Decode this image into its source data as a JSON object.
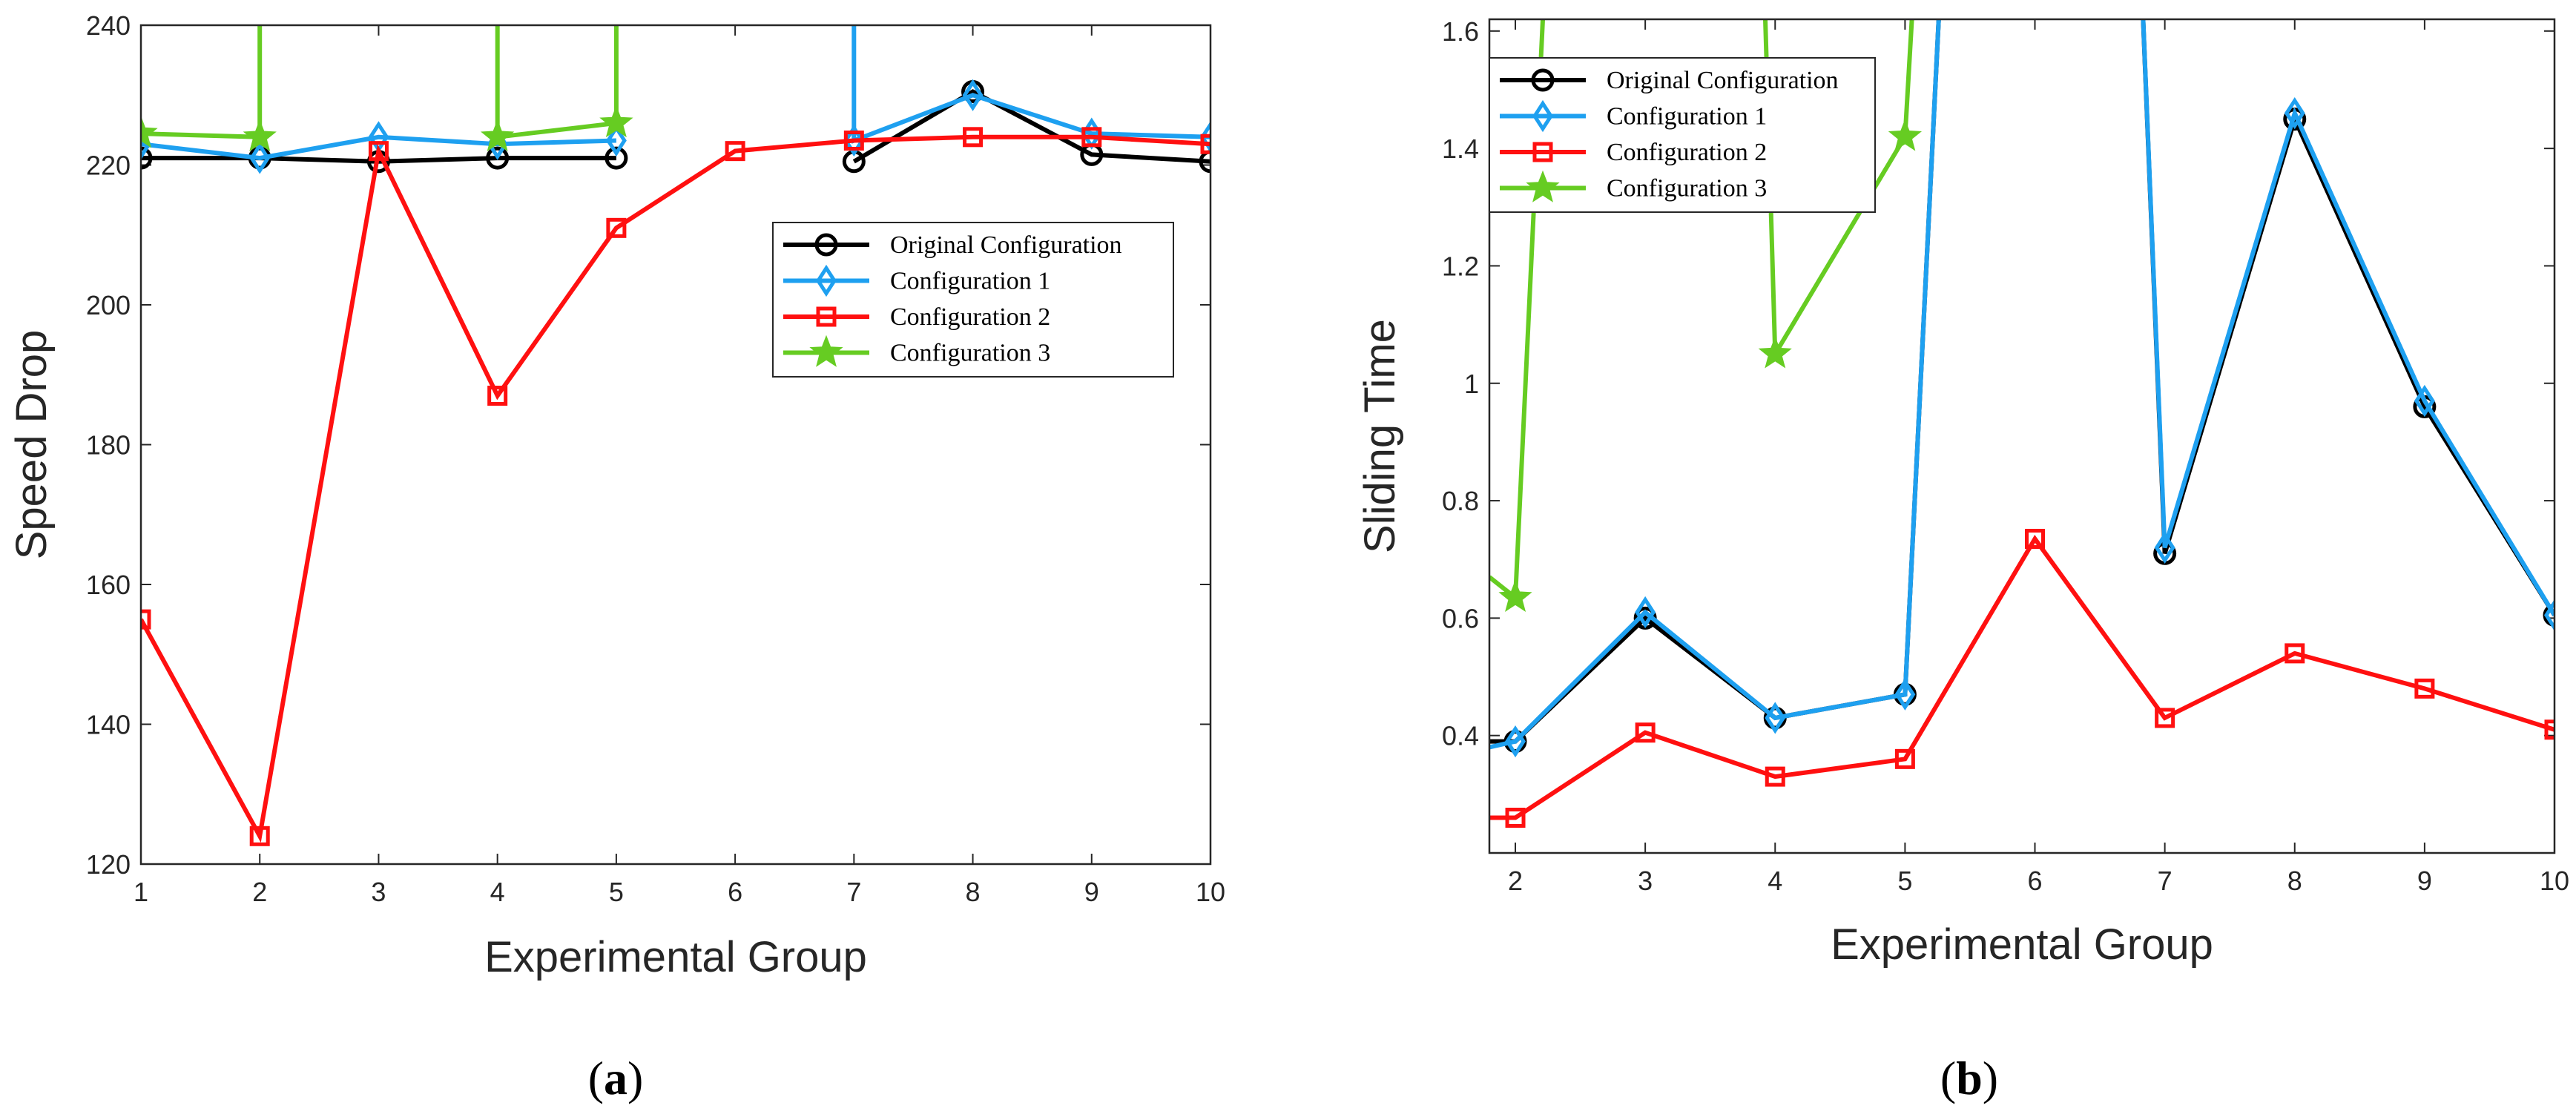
{
  "chart_data": [
    {
      "type": "line",
      "panel_label": "a",
      "xlabel": "Experimental Group",
      "ylabel": "Speed Drop",
      "xlim": [
        1,
        10
      ],
      "ylim": [
        120,
        240
      ],
      "xticks": [
        1,
        2,
        3,
        4,
        5,
        6,
        7,
        8,
        9,
        10
      ],
      "yticks": [
        120,
        140,
        160,
        180,
        200,
        220,
        240
      ],
      "legend_position": "right-center",
      "series": [
        {
          "name": "Original Configuration",
          "color": "#000000",
          "marker": "circle",
          "segments": [
            [
              [
                1,
                221
              ],
              [
                2,
                221
              ],
              [
                3,
                220.5
              ],
              [
                4,
                221
              ],
              [
                5,
                221
              ]
            ],
            [
              [
                7,
                220.5
              ],
              [
                8,
                230.5
              ],
              [
                9,
                221.5
              ],
              [
                10,
                220.5
              ]
            ]
          ]
        },
        {
          "name": "Configuration 1",
          "color": "#1ea0f0",
          "marker": "diamond",
          "segments": [
            [
              [
                1,
                223
              ],
              [
                2,
                221
              ],
              [
                3,
                224
              ],
              [
                4,
                223
              ],
              [
                5,
                223.5
              ]
            ],
            [
              [
                7,
                260
              ],
              [
                7,
                223.5
              ],
              [
                8,
                230
              ],
              [
                9,
                224.5
              ],
              [
                10,
                224
              ]
            ]
          ]
        },
        {
          "name": "Configuration 2",
          "color": "#ff1010",
          "marker": "square",
          "segments": [
            [
              [
                1,
                155
              ],
              [
                2,
                124
              ],
              [
                3,
                222
              ],
              [
                4,
                187
              ],
              [
                5,
                211
              ],
              [
                6,
                222
              ],
              [
                7,
                223.5
              ],
              [
                8,
                224
              ],
              [
                9,
                224
              ],
              [
                10,
                223
              ]
            ]
          ]
        },
        {
          "name": "Configuration 3",
          "color": "#66cc22",
          "marker": "star",
          "segments": [
            [
              [
                1,
                224.5
              ],
              [
                2,
                224
              ],
              [
                2,
                260
              ]
            ],
            [
              [
                4,
                260
              ],
              [
                4,
                224
              ],
              [
                5,
                226
              ],
              [
                5,
                260
              ]
            ]
          ]
        }
      ]
    },
    {
      "type": "line",
      "panel_label": "b",
      "xlabel": "Experimental Group",
      "ylabel": "Sliding Time",
      "xlim": [
        1.8,
        10
      ],
      "ylim": [
        0.2,
        1.62
      ],
      "xticks": [
        2,
        3,
        4,
        5,
        6,
        7,
        8,
        9,
        10
      ],
      "yticks": [
        0.4,
        0.6,
        0.8,
        1,
        1.2,
        1.4,
        1.6
      ],
      "ytick_labels": [
        "0.4",
        "0.6",
        "0.8",
        "1",
        "1.2",
        "1.4",
        "1.6"
      ],
      "legend_position": "top-left",
      "series": [
        {
          "name": "Original Configuration",
          "color": "#000000",
          "marker": "circle",
          "segments": [
            [
              [
                1.8,
                0.39
              ],
              [
                2,
                0.39
              ],
              [
                3,
                0.6
              ],
              [
                4,
                0.43
              ],
              [
                5,
                0.47
              ],
              [
                5.3,
                1.8
              ]
            ],
            [
              [
                6.8,
                1.8
              ],
              [
                7,
                0.71
              ],
              [
                8,
                1.45
              ],
              [
                9,
                0.96
              ],
              [
                10,
                0.605
              ]
            ]
          ]
        },
        {
          "name": "Configuration 1",
          "color": "#1ea0f0",
          "marker": "diamond",
          "segments": [
            [
              [
                1.8,
                0.38
              ],
              [
                2,
                0.39
              ],
              [
                3,
                0.61
              ],
              [
                4,
                0.43
              ],
              [
                5,
                0.47
              ],
              [
                5.3,
                1.8
              ]
            ],
            [
              [
                6.8,
                1.8
              ],
              [
                7,
                0.72
              ],
              [
                8,
                1.46
              ],
              [
                9,
                0.97
              ],
              [
                10,
                0.605
              ]
            ]
          ]
        },
        {
          "name": "Configuration 2",
          "color": "#ff1010",
          "marker": "square",
          "segments": [
            [
              [
                1.8,
                0.26
              ],
              [
                2,
                0.26
              ],
              [
                3,
                0.405
              ],
              [
                4,
                0.33
              ],
              [
                5,
                0.36
              ],
              [
                6,
                0.735
              ],
              [
                7,
                0.43
              ],
              [
                8,
                0.54
              ],
              [
                9,
                0.48
              ],
              [
                10,
                0.41
              ]
            ]
          ]
        },
        {
          "name": "Configuration 3",
          "color": "#66cc22",
          "marker": "star",
          "segments": [
            [
              [
                1.8,
                0.67
              ],
              [
                2,
                0.635
              ],
              [
                2.25,
                1.8
              ]
            ],
            [
              [
                3.9,
                1.8
              ],
              [
                4,
                1.05
              ],
              [
                5,
                1.42
              ],
              [
                5.1,
                1.8
              ]
            ]
          ]
        }
      ]
    }
  ]
}
